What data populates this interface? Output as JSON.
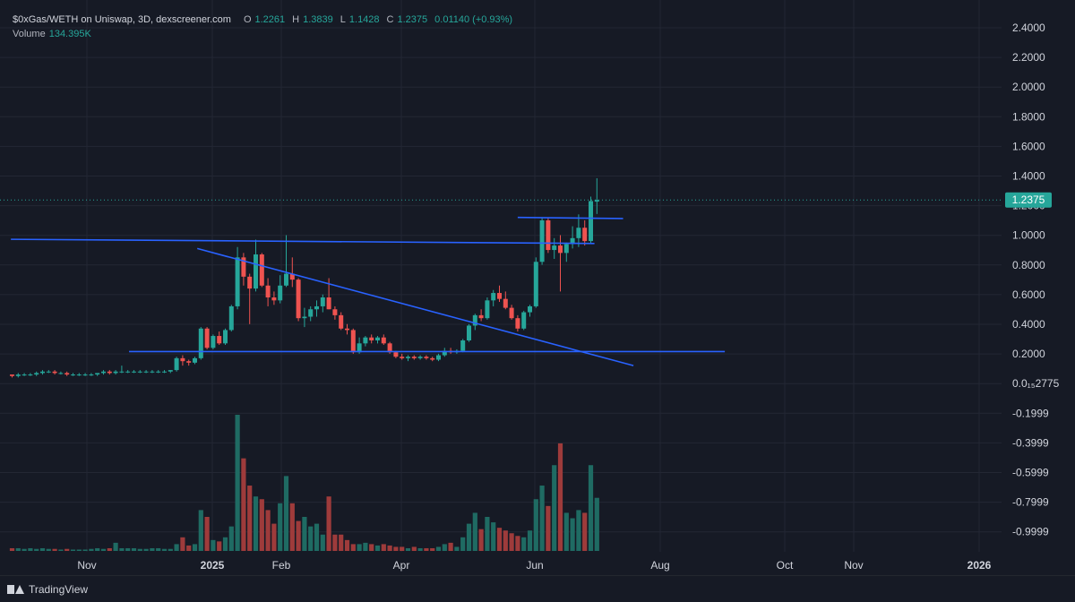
{
  "legend": {
    "title": "$0xGas/WETH on Uniswap, 3D, dexscreener.com",
    "open_label": "O",
    "open": "1.2261",
    "high_label": "H",
    "high": "1.3839",
    "low_label": "L",
    "low": "1.1428",
    "close_label": "C",
    "close": "1.2375",
    "change": "0.01140 (+0.93%)",
    "volume_label": "Volume",
    "volume": "134.395K"
  },
  "footer": {
    "brand": "TradingView"
  },
  "colors": {
    "up": "#26a69a",
    "down": "#ef5350",
    "line": "#2962ff",
    "bg": "#161a25",
    "grid": "#232734"
  },
  "chart_data": {
    "type": "candlestick",
    "symbol": "$0xGas/WETH",
    "interval": "3D",
    "current_price": 1.2375,
    "y_ticks": [
      "2.4000",
      "2.2000",
      "2.0000",
      "1.8000",
      "1.6000",
      "1.4000",
      "1.2000",
      "1.0000",
      "0.8000",
      "0.6000",
      "0.4000",
      "0.2000",
      "0.0₁₅2775",
      "-0.1999",
      "-0.3999",
      "-0.5999",
      "-0.7999",
      "-0.9999"
    ],
    "x_ticks": [
      "Nov",
      "2025",
      "Feb",
      "Apr",
      "Jun",
      "Aug",
      "Oct",
      "Nov",
      "2026"
    ],
    "ylim": [
      -1.1,
      2.5
    ],
    "candles": [
      [
        0.06,
        0.06,
        0.04,
        0.05
      ],
      [
        0.05,
        0.07,
        0.04,
        0.06
      ],
      [
        0.06,
        0.07,
        0.05,
        0.06
      ],
      [
        0.06,
        0.07,
        0.05,
        0.06
      ],
      [
        0.06,
        0.08,
        0.05,
        0.07
      ],
      [
        0.07,
        0.09,
        0.06,
        0.08
      ],
      [
        0.08,
        0.09,
        0.07,
        0.08
      ],
      [
        0.08,
        0.09,
        0.06,
        0.07
      ],
      [
        0.07,
        0.08,
        0.06,
        0.07
      ],
      [
        0.07,
        0.08,
        0.05,
        0.06
      ],
      [
        0.06,
        0.07,
        0.05,
        0.06
      ],
      [
        0.06,
        0.07,
        0.05,
        0.06
      ],
      [
        0.06,
        0.07,
        0.05,
        0.06
      ],
      [
        0.06,
        0.07,
        0.05,
        0.06
      ],
      [
        0.06,
        0.07,
        0.05,
        0.07
      ],
      [
        0.07,
        0.09,
        0.06,
        0.08
      ],
      [
        0.08,
        0.09,
        0.06,
        0.07
      ],
      [
        0.07,
        0.09,
        0.06,
        0.08
      ],
      [
        0.08,
        0.12,
        0.07,
        0.08
      ],
      [
        0.08,
        0.09,
        0.07,
        0.08
      ],
      [
        0.08,
        0.09,
        0.07,
        0.08
      ],
      [
        0.08,
        0.09,
        0.07,
        0.08
      ],
      [
        0.08,
        0.09,
        0.07,
        0.08
      ],
      [
        0.08,
        0.09,
        0.07,
        0.08
      ],
      [
        0.08,
        0.09,
        0.07,
        0.08
      ],
      [
        0.08,
        0.09,
        0.07,
        0.08
      ],
      [
        0.08,
        0.09,
        0.07,
        0.09
      ],
      [
        0.09,
        0.18,
        0.08,
        0.17
      ],
      [
        0.17,
        0.19,
        0.12,
        0.15
      ],
      [
        0.15,
        0.16,
        0.12,
        0.14
      ],
      [
        0.14,
        0.18,
        0.13,
        0.17
      ],
      [
        0.17,
        0.38,
        0.16,
        0.37
      ],
      [
        0.37,
        0.38,
        0.23,
        0.24
      ],
      [
        0.24,
        0.33,
        0.23,
        0.32
      ],
      [
        0.32,
        0.35,
        0.26,
        0.27
      ],
      [
        0.27,
        0.37,
        0.26,
        0.36
      ],
      [
        0.36,
        0.53,
        0.35,
        0.52
      ],
      [
        0.52,
        0.92,
        0.5,
        0.85
      ],
      [
        0.85,
        0.88,
        0.66,
        0.72
      ],
      [
        0.72,
        0.74,
        0.4,
        0.64
      ],
      [
        0.64,
        0.97,
        0.62,
        0.87
      ],
      [
        0.87,
        0.88,
        0.65,
        0.66
      ],
      [
        0.66,
        0.71,
        0.52,
        0.58
      ],
      [
        0.58,
        0.62,
        0.53,
        0.56
      ],
      [
        0.56,
        0.73,
        0.54,
        0.66
      ],
      [
        0.66,
        1.0,
        0.65,
        0.74
      ],
      [
        0.74,
        0.85,
        0.65,
        0.7
      ],
      [
        0.7,
        0.71,
        0.42,
        0.44
      ],
      [
        0.44,
        0.51,
        0.38,
        0.45
      ],
      [
        0.45,
        0.52,
        0.42,
        0.5
      ],
      [
        0.5,
        0.56,
        0.45,
        0.52
      ],
      [
        0.52,
        0.6,
        0.48,
        0.58
      ],
      [
        0.58,
        0.71,
        0.5,
        0.5
      ],
      [
        0.5,
        0.52,
        0.43,
        0.46
      ],
      [
        0.46,
        0.48,
        0.36,
        0.37
      ],
      [
        0.37,
        0.4,
        0.33,
        0.36
      ],
      [
        0.36,
        0.37,
        0.2,
        0.21
      ],
      [
        0.21,
        0.31,
        0.2,
        0.27
      ],
      [
        0.27,
        0.32,
        0.25,
        0.31
      ],
      [
        0.31,
        0.33,
        0.27,
        0.29
      ],
      [
        0.29,
        0.32,
        0.27,
        0.31
      ],
      [
        0.31,
        0.33,
        0.26,
        0.27
      ],
      [
        0.27,
        0.28,
        0.2,
        0.21
      ],
      [
        0.21,
        0.22,
        0.17,
        0.18
      ],
      [
        0.18,
        0.2,
        0.16,
        0.17
      ],
      [
        0.17,
        0.19,
        0.15,
        0.18
      ],
      [
        0.18,
        0.19,
        0.16,
        0.17
      ],
      [
        0.17,
        0.19,
        0.16,
        0.18
      ],
      [
        0.18,
        0.19,
        0.16,
        0.17
      ],
      [
        0.17,
        0.18,
        0.15,
        0.16
      ],
      [
        0.16,
        0.2,
        0.15,
        0.19
      ],
      [
        0.19,
        0.24,
        0.18,
        0.22
      ],
      [
        0.22,
        0.24,
        0.2,
        0.21
      ],
      [
        0.21,
        0.23,
        0.2,
        0.22
      ],
      [
        0.22,
        0.3,
        0.21,
        0.29
      ],
      [
        0.29,
        0.4,
        0.28,
        0.39
      ],
      [
        0.39,
        0.47,
        0.36,
        0.46
      ],
      [
        0.46,
        0.5,
        0.42,
        0.44
      ],
      [
        0.44,
        0.58,
        0.43,
        0.56
      ],
      [
        0.56,
        0.63,
        0.52,
        0.61
      ],
      [
        0.61,
        0.66,
        0.55,
        0.57
      ],
      [
        0.57,
        0.62,
        0.5,
        0.51
      ],
      [
        0.51,
        0.53,
        0.43,
        0.44
      ],
      [
        0.44,
        0.46,
        0.35,
        0.37
      ],
      [
        0.37,
        0.49,
        0.36,
        0.48
      ],
      [
        0.48,
        0.53,
        0.45,
        0.52
      ],
      [
        0.52,
        0.85,
        0.51,
        0.82
      ],
      [
        0.82,
        1.12,
        0.8,
        1.1
      ],
      [
        1.1,
        1.12,
        0.88,
        0.9
      ],
      [
        0.9,
        0.98,
        0.84,
        0.93
      ],
      [
        0.93,
        1.0,
        0.62,
        0.88
      ],
      [
        0.88,
        0.95,
        0.82,
        0.94
      ],
      [
        0.94,
        1.06,
        0.91,
        0.98
      ],
      [
        0.98,
        1.14,
        0.92,
        1.05
      ],
      [
        1.05,
        1.1,
        0.93,
        0.96
      ],
      [
        0.96,
        1.26,
        0.94,
        1.23
      ],
      [
        1.2261,
        1.3839,
        1.1428,
        1.2375
      ]
    ],
    "volume_ticks_note": "",
    "volumes": [
      0.02,
      0.02,
      0.015,
      0.02,
      0.015,
      0.02,
      0.015,
      0.015,
      0.01,
      0.015,
      0.01,
      0.01,
      0.01,
      0.015,
      0.02,
      0.015,
      0.02,
      0.06,
      0.02,
      0.02,
      0.02,
      0.015,
      0.015,
      0.02,
      0.02,
      0.015,
      0.015,
      0.05,
      0.1,
      0.04,
      0.05,
      0.3,
      0.25,
      0.08,
      0.07,
      0.1,
      0.18,
      1.0,
      0.68,
      0.48,
      0.4,
      0.38,
      0.3,
      0.2,
      0.35,
      0.55,
      0.35,
      0.22,
      0.25,
      0.18,
      0.2,
      0.12,
      0.4,
      0.12,
      0.12,
      0.08,
      0.05,
      0.05,
      0.06,
      0.05,
      0.04,
      0.05,
      0.04,
      0.03,
      0.03,
      0.02,
      0.03,
      0.02,
      0.02,
      0.02,
      0.03,
      0.05,
      0.06,
      0.03,
      0.1,
      0.2,
      0.28,
      0.16,
      0.25,
      0.21,
      0.17,
      0.15,
      0.13,
      0.11,
      0.1,
      0.15,
      0.38,
      0.48,
      0.33,
      0.63,
      0.79,
      0.28,
      0.24,
      0.3,
      0.28,
      0.63,
      0.39
    ],
    "trendlines": [
      {
        "from": [
          -0.2,
          0.972
        ],
        "to": [
          95.6,
          0.944
        ]
      },
      {
        "from": [
          19.2,
          0.215
        ],
        "to": [
          117.0,
          0.215
        ]
      },
      {
        "from": [
          30.4,
          0.91
        ],
        "to": [
          102.0,
          0.12
        ]
      },
      {
        "from": [
          83.0,
          1.12
        ],
        "to": [
          100.3,
          1.112
        ]
      }
    ]
  }
}
